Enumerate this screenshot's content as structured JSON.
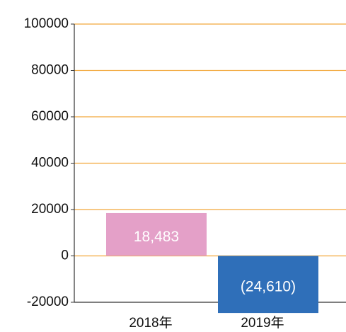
{
  "chart_data": {
    "type": "bar",
    "categories": [
      "2018年",
      "2019年"
    ],
    "values": [
      18483,
      -24610
    ],
    "value_labels": [
      "18,483",
      "(24,610)"
    ],
    "colors": [
      "#e4a0c8",
      "#2f6fb9"
    ],
    "ylim": [
      -20000,
      100000
    ],
    "yticks": [
      -20000,
      0,
      20000,
      40000,
      60000,
      80000,
      100000
    ],
    "grid": true,
    "grid_color": "#f2a73a"
  }
}
